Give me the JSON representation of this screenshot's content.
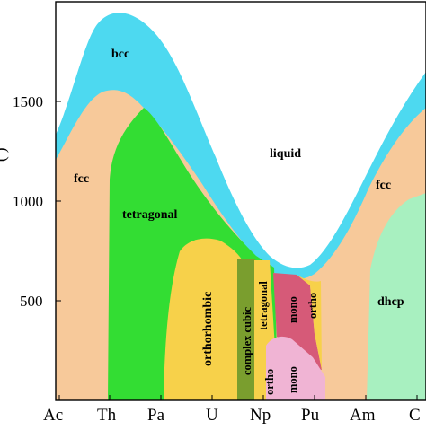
{
  "diagram": {
    "y_axis": {
      "ticks": [
        "500",
        "1000",
        "1500"
      ],
      "label_fragment": "( )"
    },
    "x_axis": {
      "elements": [
        "Ac",
        "Th",
        "Pa",
        "U",
        "Np",
        "Pu",
        "Am",
        "C"
      ]
    },
    "phases": {
      "bcc": "bcc",
      "liquid": "liquid",
      "fcc_left": "fcc",
      "fcc_right": "fcc",
      "tetragonal": "tetragonal",
      "orthorhombic": "orthorhombic",
      "complex_cubic": "complex cubic",
      "tetragonal_np": "tetragonal",
      "mono_upper": "mono",
      "ortho_upper": "ortho",
      "ortho_lower": "ortho",
      "mono_lower": "mono",
      "dhcp": "dhcp"
    },
    "colors": {
      "bcc": "#4dd9f0",
      "liquid": "#ffffff",
      "fcc": "#f7c99a",
      "tetragonal": "#33dd33",
      "orthorhombic": "#f7d14a",
      "complex_cubic": "#7a9e2e",
      "mono_upper": "#d65a78",
      "mono_lower": "#f0b4d4",
      "dhcp": "#a8f0c0"
    }
  }
}
